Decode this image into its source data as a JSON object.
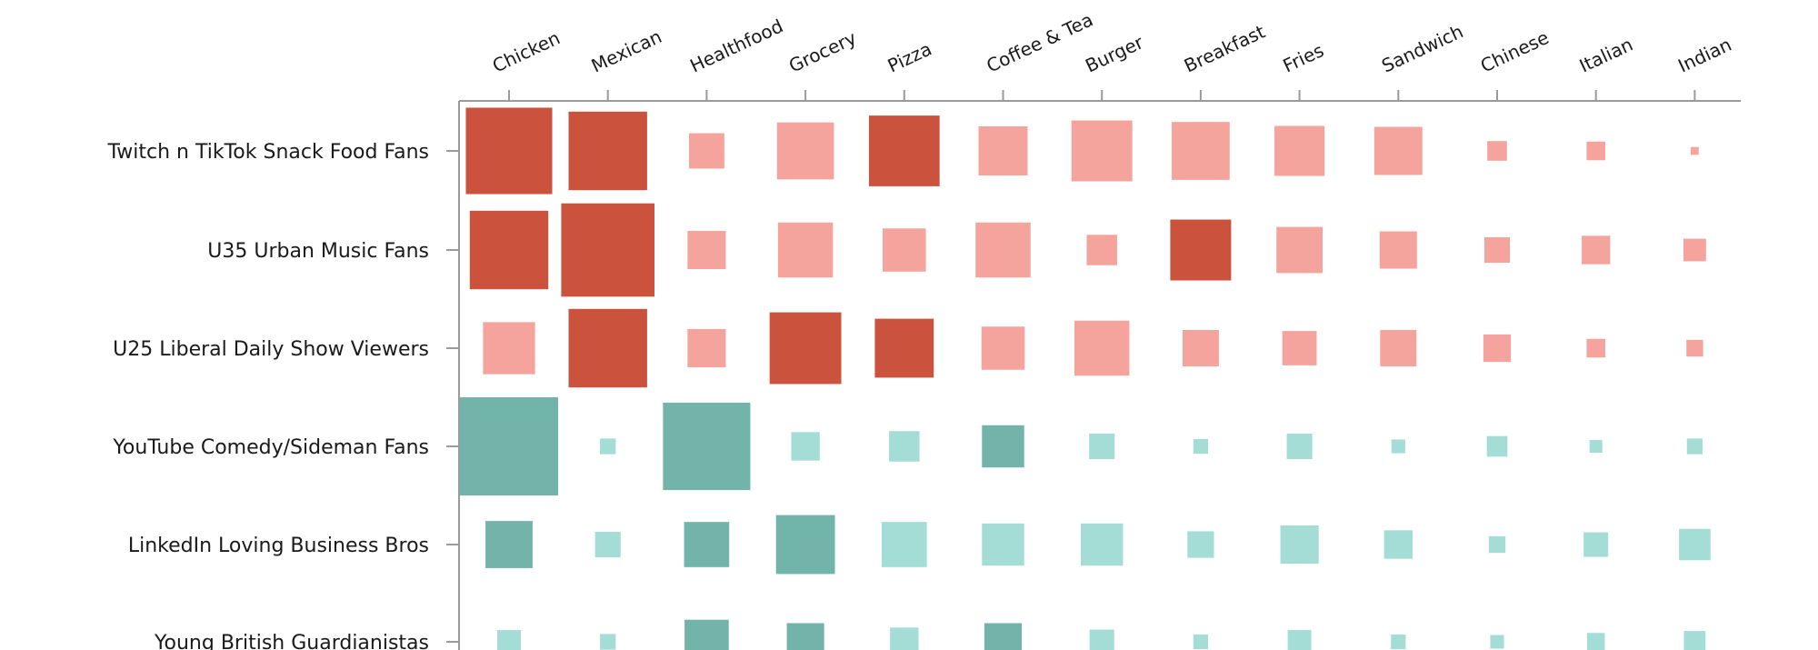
{
  "chart_data": {
    "type": "heatmap",
    "columns": [
      "Chicken",
      "Mexican",
      "Healthfood",
      "Grocery",
      "Pizza",
      "Coffee & Tea",
      "Burger",
      "Breakfast",
      "Fries",
      "Sandwich",
      "Chinese",
      "Italian",
      "Indian"
    ],
    "rows": [
      {
        "name": "Twitch n TikTok Snack Food Fans",
        "group": "red",
        "values": [
          0.88,
          0.8,
          0.36,
          0.58,
          0.72,
          0.5,
          0.62,
          0.59,
          0.51,
          0.49,
          0.2,
          0.19,
          0.08
        ],
        "strong": [
          true,
          true,
          false,
          false,
          true,
          false,
          false,
          false,
          false,
          false,
          false,
          false,
          false
        ]
      },
      {
        "name": "U35 Urban Music Fans",
        "group": "red",
        "values": [
          0.8,
          0.95,
          0.39,
          0.56,
          0.44,
          0.56,
          0.31,
          0.62,
          0.47,
          0.38,
          0.26,
          0.29,
          0.23
        ],
        "strong": [
          true,
          true,
          false,
          false,
          false,
          false,
          false,
          true,
          false,
          false,
          false,
          false,
          false
        ]
      },
      {
        "name": "U25 Liberal Daily Show Viewers",
        "group": "red",
        "values": [
          0.53,
          0.8,
          0.39,
          0.73,
          0.6,
          0.44,
          0.56,
          0.37,
          0.35,
          0.37,
          0.28,
          0.19,
          0.17
        ],
        "strong": [
          false,
          true,
          false,
          true,
          true,
          false,
          false,
          false,
          false,
          false,
          false,
          false,
          false
        ]
      },
      {
        "name": "YouTube Comedy/Sideman Fans",
        "group": "teal",
        "values": [
          1.0,
          0.16,
          0.89,
          0.29,
          0.31,
          0.43,
          0.26,
          0.15,
          0.26,
          0.14,
          0.21,
          0.13,
          0.16
        ],
        "strong": [
          true,
          false,
          true,
          false,
          false,
          true,
          false,
          false,
          false,
          false,
          false,
          false,
          false
        ]
      },
      {
        "name": "LinkedIn Loving Business Bros",
        "group": "teal",
        "values": [
          0.48,
          0.26,
          0.46,
          0.6,
          0.46,
          0.43,
          0.43,
          0.27,
          0.39,
          0.29,
          0.17,
          0.25,
          0.32
        ],
        "strong": [
          true,
          false,
          true,
          true,
          false,
          false,
          false,
          false,
          false,
          false,
          false,
          false,
          false
        ]
      },
      {
        "name": "Young British Guardianistas",
        "group": "teal",
        "values": [
          0.24,
          0.16,
          0.45,
          0.38,
          0.29,
          0.38,
          0.25,
          0.15,
          0.24,
          0.15,
          0.14,
          0.18,
          0.22
        ],
        "strong": [
          false,
          false,
          true,
          true,
          false,
          true,
          false,
          false,
          false,
          false,
          false,
          false,
          false
        ]
      }
    ],
    "colors": {
      "red_strong": "#cb533d",
      "red_light": "#f4a49c",
      "teal_strong": "#72b3aa",
      "teal_light": "#a3ddd6",
      "axis": "#9a9a9a"
    },
    "grid": false,
    "legend": "none"
  }
}
